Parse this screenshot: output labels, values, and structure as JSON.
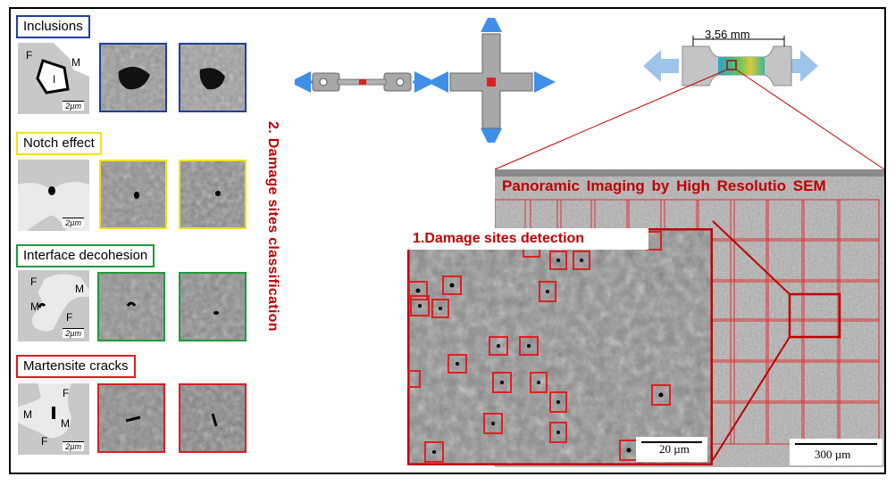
{
  "figure": {
    "classification_title": "2. Damage sites classification",
    "panorama_title": "Panoramic Imaging by High Resolutio SEM",
    "detection_title": "1.Damage sites detection",
    "dimension_label": "3,56 mm",
    "detection_scale_bar": "20 µm",
    "panorama_scale_bar": "300 µm"
  },
  "categories": [
    {
      "label": "Inclusions",
      "color": "#1f3fa0",
      "phases": [
        "F",
        "M",
        "I"
      ],
      "scale": "2µm"
    },
    {
      "label": "Notch effect",
      "color": "#f2e21a",
      "phases": [],
      "scale": "2µm"
    },
    {
      "label": "Interface decohesion",
      "color": "#1e9a3a",
      "phases": [
        "F",
        "M",
        "M",
        "F"
      ],
      "scale": "2µm"
    },
    {
      "label": "Martensite cracks",
      "color": "#d81f1f",
      "phases": [
        "F",
        "M",
        "M",
        "F"
      ],
      "scale": "2µm"
    }
  ],
  "colors": {
    "accent_red": "#c00000",
    "arrow_blue": "#3f8fe8"
  },
  "icons": [
    "dogbone-specimen-icon",
    "cruciform-specimen-icon",
    "tensile-specimen-icon"
  ]
}
